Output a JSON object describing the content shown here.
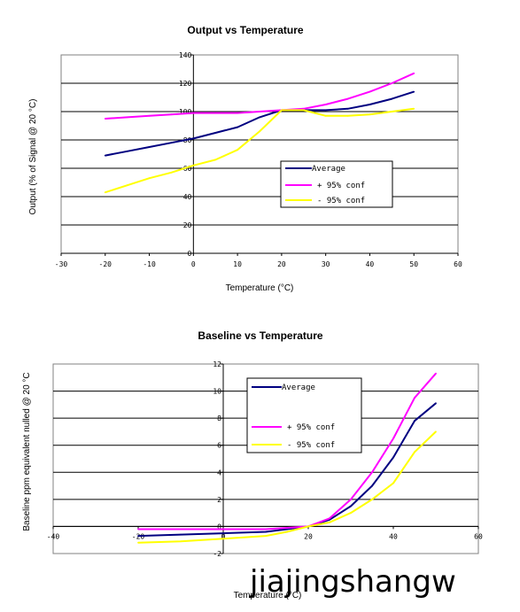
{
  "watermark": "jiajingshangw",
  "chart_data": [
    {
      "type": "line",
      "title": "Output vs Temperature",
      "xlabel": "Temperature (°C)",
      "ylabel": "Output (% of Signal @ 20 °C)",
      "xlim": [
        -30,
        60
      ],
      "ylim": [
        0,
        140
      ],
      "x_ticks": [
        -30,
        -20,
        -10,
        0,
        10,
        20,
        30,
        40,
        50,
        60
      ],
      "y_ticks": [
        0,
        20,
        40,
        60,
        80,
        100,
        120,
        140
      ],
      "grid": "horizontal",
      "legend": "center-right",
      "colors": {
        "Average": "#000080",
        "+ 95% conf": "#ff00ff",
        "- 95% conf": "#ffff00"
      },
      "series": [
        {
          "name": "Average",
          "x": [
            -20,
            -15,
            -10,
            -5,
            0,
            5,
            10,
            15,
            20,
            25,
            30,
            35,
            40,
            45,
            50
          ],
          "y": [
            69,
            72,
            75,
            78,
            81,
            85,
            89,
            96,
            101,
            101,
            101,
            102,
            105,
            109,
            114
          ]
        },
        {
          "name": "+ 95% conf",
          "x": [
            -20,
            -15,
            -10,
            -5,
            0,
            5,
            10,
            15,
            20,
            25,
            30,
            35,
            40,
            45,
            50
          ],
          "y": [
            95,
            96,
            97,
            98,
            99,
            99,
            99,
            100,
            101,
            102,
            105,
            109,
            114,
            120,
            127
          ]
        },
        {
          "name": "- 95% conf",
          "x": [
            -20,
            -15,
            -10,
            -5,
            0,
            5,
            10,
            15,
            20,
            25,
            30,
            35,
            40,
            45,
            50
          ],
          "y": [
            43,
            48,
            53,
            57,
            62,
            66,
            73,
            86,
            101,
            101,
            97,
            97,
            98,
            100,
            102
          ]
        }
      ]
    },
    {
      "type": "line",
      "title": "Baseline vs Temperature",
      "xlabel": "Temperature (°C)",
      "ylabel": "Baseline ppm equivalent nulled @ 20 °C",
      "xlim": [
        -40,
        60
      ],
      "ylim": [
        -2,
        12
      ],
      "x_ticks": [
        -40,
        -20,
        0,
        20,
        40,
        60
      ],
      "y_ticks": [
        -2,
        0,
        2,
        4,
        6,
        8,
        10,
        12
      ],
      "grid": "horizontal",
      "legend": "center",
      "colors": {
        "Average": "#000080",
        "+ 95% conf": "#ff00ff",
        "- 95% conf": "#ffff00"
      },
      "series": [
        {
          "name": "Average",
          "x": [
            -20,
            -10,
            0,
            10,
            15,
            20,
            25,
            30,
            35,
            40,
            45,
            50
          ],
          "y": [
            -0.7,
            -0.6,
            -0.5,
            -0.4,
            -0.2,
            0,
            0.5,
            1.5,
            3,
            5.1,
            7.8,
            9.1
          ]
        },
        {
          "name": "+ 95% conf",
          "x": [
            -20,
            -10,
            0,
            10,
            15,
            20,
            25,
            30,
            35,
            40,
            45,
            50
          ],
          "y": [
            -0.2,
            -0.2,
            -0.2,
            -0.2,
            -0.1,
            0,
            0.6,
            2,
            4,
            6.5,
            9.5,
            11.3
          ]
        },
        {
          "name": "- 95% conf",
          "x": [
            -20,
            -10,
            0,
            10,
            15,
            20,
            25,
            30,
            35,
            40,
            45,
            50
          ],
          "y": [
            -1.2,
            -1.1,
            -0.9,
            -0.7,
            -0.4,
            0,
            0.3,
            1,
            2,
            3.2,
            5.5,
            7
          ]
        }
      ]
    }
  ]
}
